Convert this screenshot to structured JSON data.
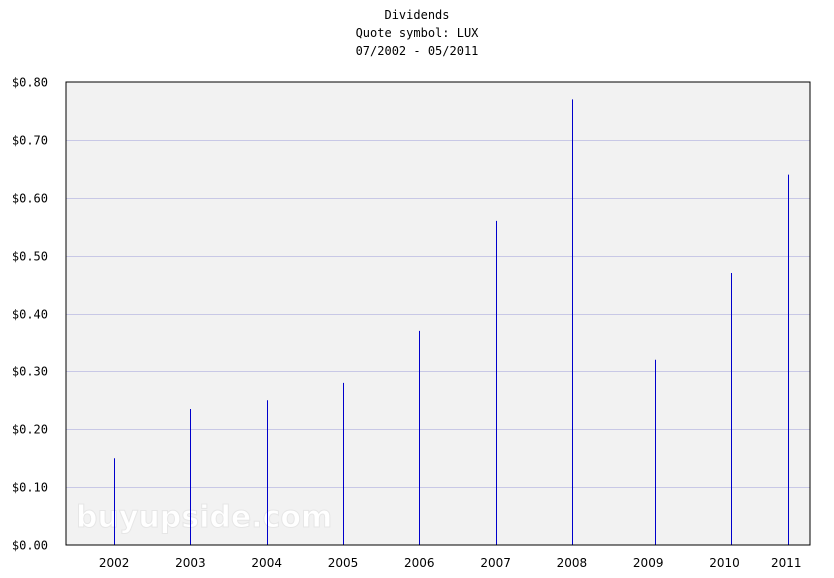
{
  "chart_data": {
    "type": "bar",
    "title": "Dividends",
    "subtitle": "Quote symbol: LUX",
    "period": "07/2002 - 05/2011",
    "watermark": "buyupside.com",
    "ylim": [
      0,
      0.8
    ],
    "yticks": [
      "$0.00",
      "$0.10",
      "$0.20",
      "$0.30",
      "$0.40",
      "$0.50",
      "$0.60",
      "$0.70",
      "$0.80"
    ],
    "xticks": [
      "2002",
      "2003",
      "2004",
      "2005",
      "2006",
      "2007",
      "2008",
      "2009",
      "2010",
      "2011"
    ],
    "x": [
      "2002-07",
      "2003-07",
      "2004-07",
      "2005-07",
      "2006-07",
      "2007-07",
      "2008-07",
      "2009-08",
      "2010-08",
      "2011-05"
    ],
    "values": [
      0.15,
      0.235,
      0.25,
      0.28,
      0.37,
      0.56,
      0.77,
      0.32,
      0.47,
      0.64
    ],
    "grid": true,
    "colors": {
      "bar": "#0000cc",
      "plot_bg": "#f2f2f2",
      "grid": "#c8c8e6",
      "frame": "#000000"
    }
  }
}
